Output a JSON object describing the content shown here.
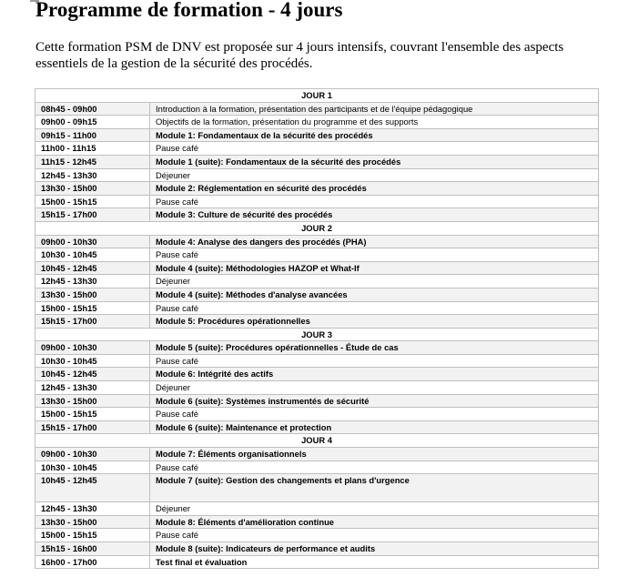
{
  "title": "Programme de formation - 4 jours",
  "intro": "Cette formation PSM de DNV est proposée sur 4 jours intensifs, couvrant l'ensemble des aspects essentiels de la gestion de la sécurité des procédés.",
  "days": [
    {
      "label": "JOUR 1",
      "rows": [
        {
          "time": "08h45 - 09h00",
          "activity": "Introduction à la formation, présentation des participants et de l'équipe pédagogique",
          "bold": false
        },
        {
          "time": "09h00 - 09h15",
          "activity": "Objectifs de la formation, présentation du programme et des supports",
          "bold": false
        },
        {
          "time": "09h15 - 11h00",
          "activity": "Module 1: Fondamentaux de la sécurité des procédés",
          "bold": true
        },
        {
          "time": "11h00 - 11h15",
          "activity": "Pause café",
          "bold": false
        },
        {
          "time": "11h15 - 12h45",
          "activity": "Module 1 (suite): Fondamentaux de la sécurité des procédés",
          "bold": true
        },
        {
          "time": "12h45 - 13h30",
          "activity": "Déjeuner",
          "bold": false
        },
        {
          "time": "13h30 - 15h00",
          "activity": "Module 2: Réglementation en sécurité des procédés",
          "bold": true
        },
        {
          "time": "15h00 - 15h15",
          "activity": "Pause café",
          "bold": false
        },
        {
          "time": "15h15 - 17h00",
          "activity": "Module 3: Culture de sécurité des procédés",
          "bold": true
        }
      ]
    },
    {
      "label": "JOUR 2",
      "rows": [
        {
          "time": "09h00 - 10h30",
          "activity": "Module 4: Analyse des dangers des procédés (PHA)",
          "bold": true
        },
        {
          "time": "10h30 - 10h45",
          "activity": "Pause café",
          "bold": false
        },
        {
          "time": "10h45 - 12h45",
          "activity": "Module 4 (suite): Méthodologies HAZOP et What-If",
          "bold": true
        },
        {
          "time": "12h45 - 13h30",
          "activity": "Déjeuner",
          "bold": false
        },
        {
          "time": "13h30 - 15h00",
          "activity": "Module 4 (suite): Méthodes d'analyse avancées",
          "bold": true
        },
        {
          "time": "15h00 - 15h15",
          "activity": "Pause café",
          "bold": false
        },
        {
          "time": "15h15 - 17h00",
          "activity": "Module 5: Procédures opérationnelles",
          "bold": true
        }
      ]
    },
    {
      "label": "JOUR 3",
      "rows": [
        {
          "time": "09h00 - 10h30",
          "activity": "Module 5 (suite): Procédures opérationnelles - Étude de cas",
          "bold": true
        },
        {
          "time": "10h30 - 10h45",
          "activity": "Pause café",
          "bold": false
        },
        {
          "time": "10h45 - 12h45",
          "activity": "Module 6: Intégrité des actifs",
          "bold": true
        },
        {
          "time": "12h45 - 13h30",
          "activity": "Déjeuner",
          "bold": false
        },
        {
          "time": "13h30 - 15h00",
          "activity": "Module 6 (suite): Systèmes instrumentés de sécurité",
          "bold": true
        },
        {
          "time": "15h00 - 15h15",
          "activity": "Pause café",
          "bold": false
        },
        {
          "time": "15h15 - 17h00",
          "activity": "Module 6 (suite): Maintenance et protection",
          "bold": true
        }
      ]
    },
    {
      "label": "JOUR 4",
      "rows": [
        {
          "time": "09h00 - 10h30",
          "activity": "Module 7: Éléments organisationnels",
          "bold": true
        },
        {
          "time": "10h30 - 10h45",
          "activity": "Pause café",
          "bold": false
        },
        {
          "time": "10h45 - 12h45",
          "activity": "Module 7 (suite): Gestion des changements et plans d'urgence",
          "bold": true,
          "tall": true
        },
        {
          "time": "12h45 - 13h30",
          "activity": "Déjeuner",
          "bold": false
        },
        {
          "time": "13h30 - 15h00",
          "activity": "Module 8: Éléments d'amélioration continue",
          "bold": true
        },
        {
          "time": "15h00 - 15h15",
          "activity": "Pause café",
          "bold": false
        },
        {
          "time": "15h15 - 16h00",
          "activity": "Module 8 (suite): Indicateurs de performance et audits",
          "bold": true
        },
        {
          "time": "16h00 - 17h00",
          "activity": "Test final et évaluation",
          "bold": true
        }
      ]
    }
  ]
}
